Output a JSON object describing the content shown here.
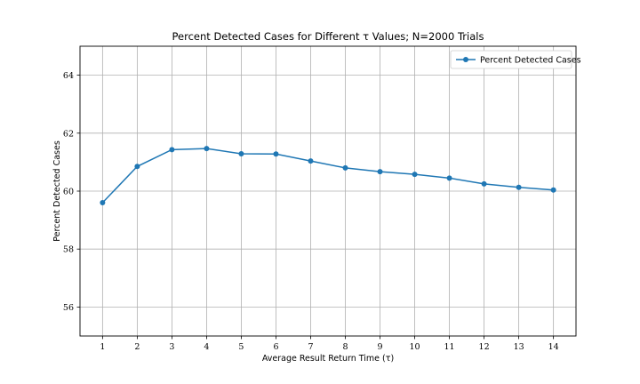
{
  "chart_data": {
    "type": "line",
    "title": "Percent Detected Cases for Different τ Values; N=2000 Trials",
    "xlabel": "Average Result Return Time (τ)",
    "ylabel": "Percent Detected Cases",
    "x": [
      1,
      2,
      3,
      4,
      5,
      6,
      7,
      8,
      9,
      10,
      11,
      12,
      13,
      14
    ],
    "x_ticks": [
      "1",
      "2",
      "3",
      "4",
      "5",
      "6",
      "7",
      "8",
      "9",
      "10",
      "11",
      "12",
      "13",
      "14"
    ],
    "y_ticks": [
      "56",
      "58",
      "60",
      "62",
      "64"
    ],
    "xlim": [
      0.35,
      14.65
    ],
    "ylim": [
      55.0,
      65.0
    ],
    "grid": true,
    "legend_position": "top-right",
    "series": [
      {
        "name": "Percent Detected Cases",
        "color": "#1f77b4",
        "marker": "circle",
        "values": [
          59.6,
          60.85,
          61.43,
          61.47,
          61.29,
          61.28,
          61.04,
          60.8,
          60.67,
          60.58,
          60.45,
          60.25,
          60.13,
          60.04
        ]
      }
    ]
  }
}
